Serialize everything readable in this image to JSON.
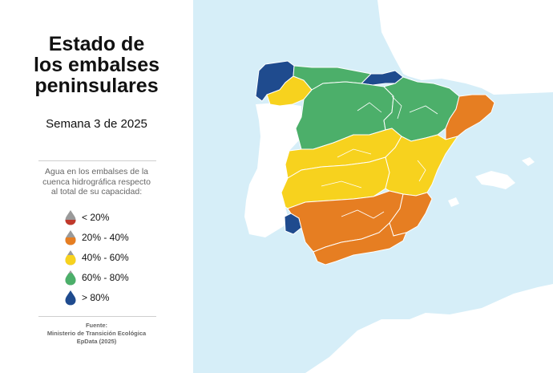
{
  "title_lines": [
    "Estado de",
    "los embalses",
    "peninsulares"
  ],
  "subtitle": "Semana 3 de 2025",
  "legend": {
    "intro_lines": [
      "Agua en los embalses de la",
      "cuenca hidrográfica respecto",
      "al total de su capacidad:"
    ],
    "items": [
      {
        "label": "< 20%",
        "color": "#c0392b",
        "fill_level": 0.2
      },
      {
        "label": "20% - 40%",
        "color": "#e67e22",
        "fill_level": 0.4
      },
      {
        "label": "40% - 60%",
        "color": "#f7d21e",
        "fill_level": 0.6
      },
      {
        "label": "60% - 80%",
        "color": "#4caf6a",
        "fill_level": 0.8
      },
      {
        "label": "> 80%",
        "color": "#1f4b8e",
        "fill_level": 1.0
      }
    ]
  },
  "source_lines": [
    "Fuente:",
    "Ministerio de Transición Ecológica",
    "EpData (2025)"
  ],
  "colors": {
    "sea": "#d6eef8",
    "land": "#ffffff",
    "gray_drop": "#9a9a9a"
  }
}
